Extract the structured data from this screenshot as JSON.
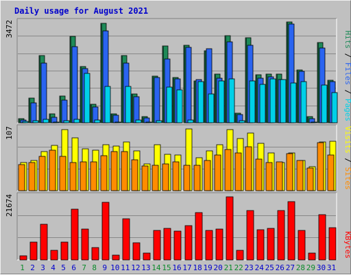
{
  "title": "Daily usage for August 2021",
  "colors": {
    "background": "#c0c0c0",
    "title": "#0000cc",
    "grid": "#888888",
    "pages": "#00d0e8",
    "pages_dark": "#1a6f6a",
    "files": "#2a64f0",
    "hits": "#1e8a58",
    "sites": "#ff8c00",
    "visits": "#ffff00",
    "kbytes": "#ff0000",
    "weekday_label": "#0000cc",
    "weekend_label": "#0a8a2a"
  },
  "chart_data": [
    {
      "type": "bar",
      "name": "hits-files-pages",
      "categories": [
        "1",
        "2",
        "3",
        "4",
        "5",
        "6",
        "7",
        "8",
        "9",
        "10",
        "11",
        "12",
        "13",
        "14",
        "15",
        "16",
        "17",
        "18",
        "19",
        "20",
        "21",
        "22",
        "23",
        "24",
        "25",
        "26",
        "27",
        "28",
        "29",
        "30",
        "31"
      ],
      "weekend_days": [
        "1",
        "7",
        "8",
        "14",
        "15",
        "21",
        "22",
        "28",
        "29"
      ],
      "ymax_label": "3472",
      "ylim": [
        0,
        3472
      ],
      "legend": [
        "Pages",
        "Files",
        "Hits"
      ],
      "legend_separator": " / ",
      "series": [
        {
          "name": "Hits",
          "values": [
            150,
            840,
            2310,
            300,
            910,
            2950,
            1920,
            630,
            3400,
            300,
            2310,
            990,
            220,
            1590,
            2630,
            1560,
            2660,
            1440,
            2460,
            1660,
            2980,
            330,
            2910,
            1640,
            1660,
            1660,
            3440,
            1800,
            210,
            2740,
            1450
          ]
        },
        {
          "name": "Files",
          "values": [
            100,
            690,
            2050,
            190,
            780,
            2610,
            1860,
            540,
            3140,
            260,
            2050,
            880,
            170,
            1540,
            2170,
            1500,
            2590,
            1470,
            2540,
            1520,
            2770,
            270,
            2650,
            1520,
            1580,
            1480,
            3370,
            1770,
            150,
            2550,
            1400
          ]
        },
        {
          "name": "Pages",
          "values": [
            40,
            60,
            110,
            20,
            80,
            120,
            1700,
            90,
            1240,
            25,
            1240,
            100,
            20,
            70,
            1220,
            1120,
            100,
            1400,
            980,
            1440,
            1500,
            60,
            1420,
            1310,
            1490,
            1470,
            1350,
            1400,
            30,
            1300,
            1030
          ]
        }
      ]
    },
    {
      "type": "bar",
      "name": "sites-visits",
      "categories": [
        "1",
        "2",
        "3",
        "4",
        "5",
        "6",
        "7",
        "8",
        "9",
        "10",
        "11",
        "12",
        "13",
        "14",
        "15",
        "16",
        "17",
        "18",
        "19",
        "20",
        "21",
        "22",
        "23",
        "24",
        "25",
        "26",
        "27",
        "28",
        "29",
        "30",
        "31"
      ],
      "ymax_label": "107",
      "ylim": [
        0,
        107
      ],
      "legend": [
        "Sites",
        "Visits"
      ],
      "legend_separator": " / ",
      "series": [
        {
          "name": "Visits",
          "values": [
            48,
            51,
            66,
            77,
            103,
            89,
            71,
            69,
            78,
            76,
            83,
            68,
            45,
            78,
            62,
            61,
            105,
            56,
            67,
            78,
            104,
            88,
            98,
            80,
            64,
            48,
            64,
            51,
            41,
            82,
            84
          ]
        },
        {
          "name": "Sites",
          "values": [
            44,
            48,
            58,
            69,
            58,
            48,
            49,
            49,
            59,
            66,
            66,
            52,
            42,
            43,
            45,
            49,
            43,
            43,
            51,
            60,
            70,
            64,
            75,
            53,
            48,
            49,
            63,
            51,
            38,
            81,
            60
          ]
        }
      ]
    },
    {
      "type": "bar",
      "name": "kbytes",
      "categories": [
        "1",
        "2",
        "3",
        "4",
        "5",
        "6",
        "7",
        "8",
        "9",
        "10",
        "11",
        "12",
        "13",
        "14",
        "15",
        "16",
        "17",
        "18",
        "19",
        "20",
        "21",
        "22",
        "23",
        "24",
        "25",
        "26",
        "27",
        "28",
        "29",
        "30",
        "31"
      ],
      "ymax_label": "21674",
      "ylim": [
        0,
        21674
      ],
      "legend": [
        "KBytes"
      ],
      "series": [
        {
          "name": "KBytes",
          "values": [
            1480,
            5930,
            12040,
            3200,
            5920,
            16960,
            10470,
            4250,
            19380,
            1620,
            13750,
            5730,
            2390,
            9830,
            10560,
            9590,
            11490,
            15810,
            9910,
            10360,
            21170,
            3180,
            16490,
            10220,
            10720,
            16620,
            19640,
            10000,
            2250,
            15160,
            10910
          ]
        }
      ]
    }
  ]
}
